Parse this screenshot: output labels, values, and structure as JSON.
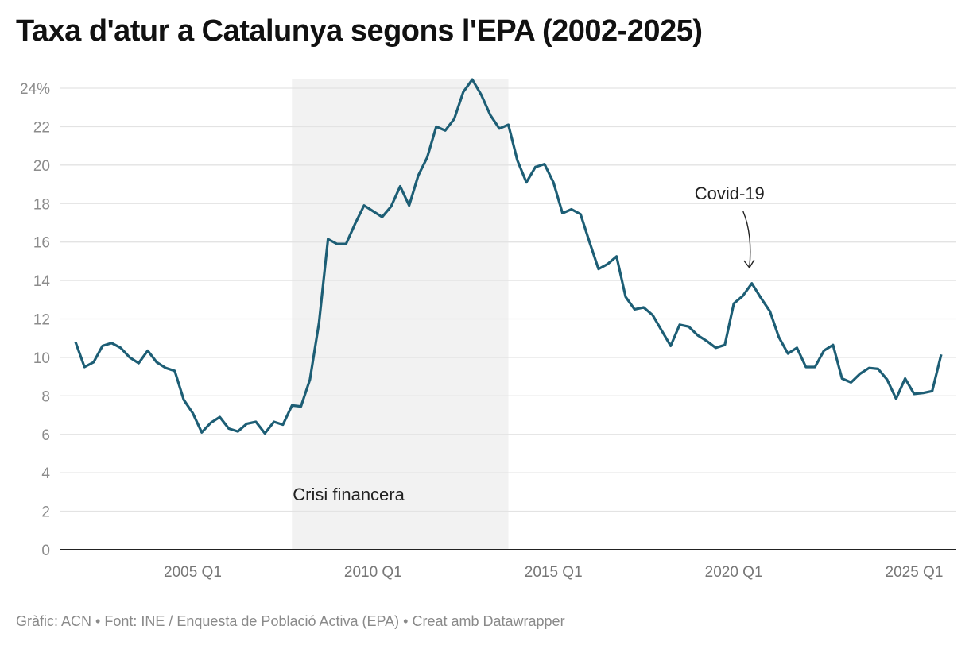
{
  "chart_data": {
    "type": "line",
    "title": "Taxa d'atur a Catalunya segons l'EPA (2002-2025)",
    "xlabel": "",
    "ylabel": "",
    "ylim": [
      0,
      24
    ],
    "y_ticks": [
      0,
      2,
      4,
      6,
      8,
      10,
      12,
      14,
      16,
      18,
      20,
      22,
      24
    ],
    "y_tick_labels": [
      "0",
      "2",
      "4",
      "6",
      "8",
      "10",
      "12",
      "14",
      "16",
      "18",
      "20",
      "22",
      "24%"
    ],
    "x_tick_labels": [
      "2005 Q1",
      "2010 Q1",
      "2015 Q1",
      "2020 Q1",
      "2025 Q1"
    ],
    "grid": "horizontal",
    "line_color": "#1d5e75",
    "x": [
      "2001 Q4",
      "2002 Q1",
      "2002 Q2",
      "2002 Q3",
      "2002 Q4",
      "2003 Q1",
      "2003 Q2",
      "2003 Q3",
      "2003 Q4",
      "2004 Q1",
      "2004 Q2",
      "2004 Q3",
      "2004 Q4",
      "2005 Q1",
      "2005 Q2",
      "2005 Q3",
      "2005 Q4",
      "2006 Q1",
      "2006 Q2",
      "2006 Q3",
      "2006 Q4",
      "2007 Q1",
      "2007 Q2",
      "2007 Q3",
      "2007 Q4",
      "2008 Q1",
      "2008 Q2",
      "2008 Q3",
      "2008 Q4",
      "2009 Q1",
      "2009 Q2",
      "2009 Q3",
      "2009 Q4",
      "2010 Q1",
      "2010 Q2",
      "2010 Q3",
      "2010 Q4",
      "2011 Q1",
      "2011 Q2",
      "2011 Q3",
      "2011 Q4",
      "2012 Q1",
      "2012 Q2",
      "2012 Q3",
      "2012 Q4",
      "2013 Q1",
      "2013 Q2",
      "2013 Q3",
      "2013 Q4",
      "2014 Q1",
      "2014 Q2",
      "2014 Q3",
      "2014 Q4",
      "2015 Q1",
      "2015 Q2",
      "2015 Q3",
      "2015 Q4",
      "2016 Q1",
      "2016 Q2",
      "2016 Q3",
      "2016 Q4",
      "2017 Q1",
      "2017 Q2",
      "2017 Q3",
      "2017 Q4",
      "2018 Q1",
      "2018 Q2",
      "2018 Q3",
      "2018 Q4",
      "2019 Q1",
      "2019 Q2",
      "2019 Q3",
      "2019 Q4",
      "2020 Q1",
      "2020 Q2",
      "2020 Q3",
      "2020 Q4",
      "2021 Q1",
      "2021 Q2",
      "2021 Q3",
      "2021 Q4",
      "2022 Q1",
      "2022 Q2",
      "2022 Q3",
      "2022 Q4",
      "2023 Q1",
      "2023 Q2",
      "2023 Q3",
      "2023 Q4",
      "2024 Q1",
      "2024 Q2",
      "2024 Q3",
      "2024 Q4",
      "2025 Q1",
      "2025 Q2",
      "2025 Q3",
      "2025 Q4"
    ],
    "values": [
      10.8,
      9.5,
      9.75,
      10.6,
      10.75,
      10.5,
      10.0,
      9.7,
      10.35,
      9.75,
      9.45,
      9.3,
      7.8,
      7.1,
      6.1,
      6.6,
      6.9,
      6.3,
      6.15,
      6.55,
      6.65,
      6.05,
      6.65,
      6.5,
      7.5,
      7.45,
      8.85,
      11.8,
      16.15,
      15.9,
      15.9,
      16.95,
      17.9,
      17.6,
      17.3,
      17.85,
      18.9,
      17.9,
      19.45,
      20.4,
      22.0,
      21.8,
      22.4,
      23.8,
      24.45,
      23.65,
      22.6,
      21.9,
      22.1,
      20.25,
      19.1,
      19.9,
      20.05,
      19.1,
      17.5,
      17.7,
      17.45,
      16.0,
      14.6,
      14.85,
      15.25,
      13.15,
      12.5,
      12.6,
      12.2,
      11.4,
      10.6,
      11.7,
      11.6,
      11.15,
      10.85,
      10.5,
      10.65,
      12.8,
      13.2,
      13.85,
      13.1,
      12.4,
      11.05,
      10.2,
      10.5,
      9.5,
      9.5,
      10.35,
      10.65,
      8.9,
      8.7,
      9.15,
      9.45,
      9.4,
      8.85,
      7.85,
      8.9,
      8.1,
      8.15,
      8.25,
      10.15
    ],
    "shaded_range": {
      "from": "2007 Q4",
      "to": "2013 Q4",
      "label": "Crisi financera",
      "color": "#f2f2f2"
    },
    "annotations": [
      {
        "text": "Covid-19",
        "x": "2020 Q3"
      }
    ]
  },
  "footer": "Gràfic: ACN • Font: INE / Enquesta de Població Activa (EPA) • Creat amb Datawrapper"
}
